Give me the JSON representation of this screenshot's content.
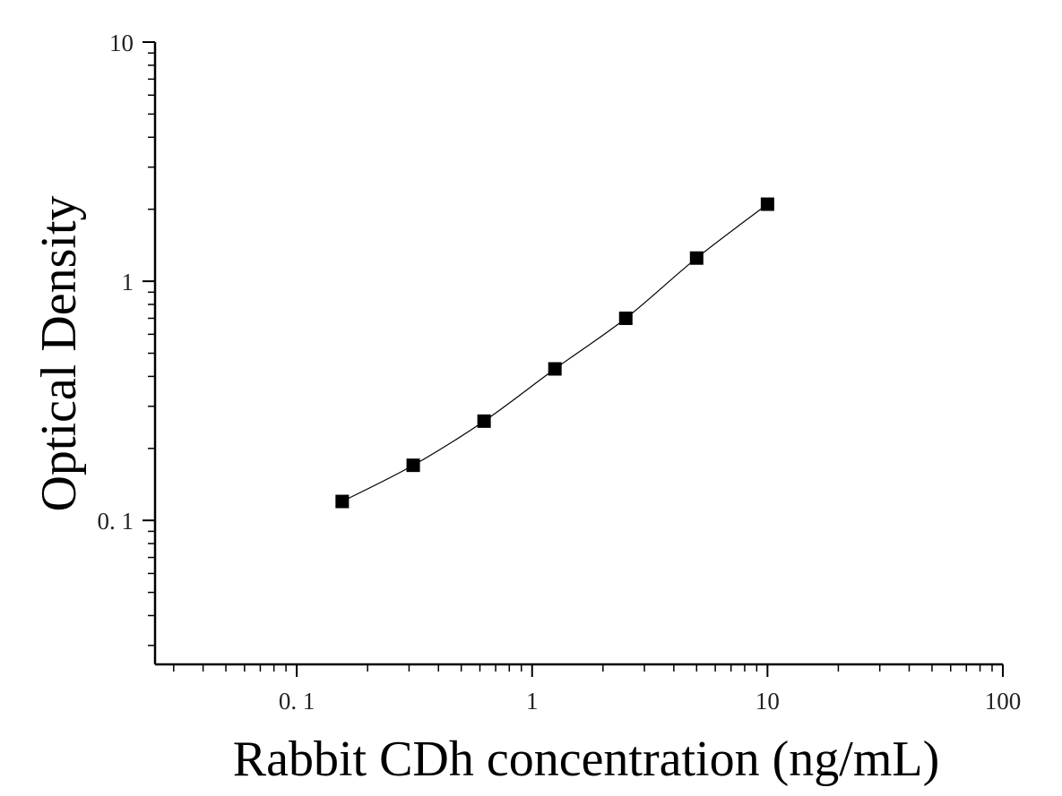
{
  "chart_data": {
    "type": "scatter",
    "title": "",
    "xlabel": "Rabbit CDh concentration (ng/mL)",
    "ylabel": "Optical Density",
    "x_scale": "log",
    "y_scale": "log",
    "xlim": [
      0.025,
      100
    ],
    "ylim": [
      0.025,
      10
    ],
    "x_ticks": [
      {
        "value": 0.1,
        "label": "0. 1"
      },
      {
        "value": 1,
        "label": "1"
      },
      {
        "value": 10,
        "label": "10"
      },
      {
        "value": 100,
        "label": "100"
      }
    ],
    "y_ticks": [
      {
        "value": 0.1,
        "label": "0. 1"
      },
      {
        "value": 1,
        "label": "1"
      },
      {
        "value": 10,
        "label": "10"
      }
    ],
    "grid": false,
    "legend": "none",
    "marker": "square",
    "fit_curve": true,
    "color": "#000000",
    "series": [
      {
        "x": [
          0.156,
          0.3125,
          0.625,
          1.25,
          2.5,
          5,
          10
        ],
        "y": [
          0.12,
          0.17,
          0.26,
          0.43,
          0.7,
          1.25,
          2.1
        ]
      }
    ]
  }
}
